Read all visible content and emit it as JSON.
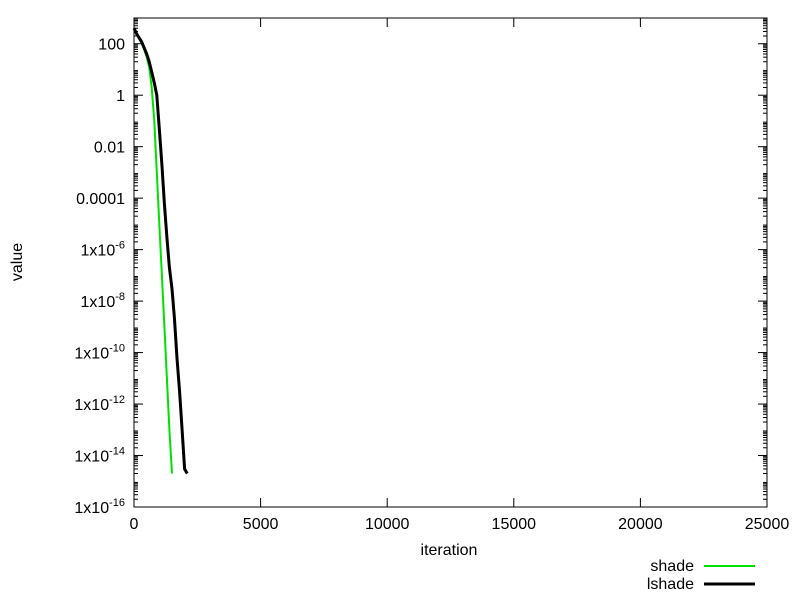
{
  "chart_data": {
    "type": "line",
    "xlabel": "iteration",
    "ylabel": "value",
    "title": "",
    "xscale": "linear",
    "yscale": "log",
    "xlim": [
      0,
      25000
    ],
    "ylim": [
      1e-16,
      1000
    ],
    "x_ticks": [
      0,
      5000,
      10000,
      15000,
      20000,
      25000
    ],
    "x_tick_labels": [
      "0",
      "5000",
      "10000",
      "15000",
      "20000",
      "25000"
    ],
    "y_ticks": [
      {
        "value": 100,
        "label": "100"
      },
      {
        "value": 1,
        "label": "1"
      },
      {
        "value": 0.01,
        "label": "0.01"
      },
      {
        "value": 0.0001,
        "label": "0.0001"
      },
      {
        "value": 1e-06,
        "base": "1x10",
        "exp": "-6"
      },
      {
        "value": 1e-08,
        "base": "1x10",
        "exp": "-8"
      },
      {
        "value": 1e-10,
        "base": "1x10",
        "exp": "-10"
      },
      {
        "value": 1e-12,
        "base": "1x10",
        "exp": "-12"
      },
      {
        "value": 1e-14,
        "base": "1x10",
        "exp": "-14"
      },
      {
        "value": 1e-16,
        "base": "1x10",
        "exp": "-16"
      }
    ],
    "grid": false,
    "legend_position": "bottom-right, outside plot",
    "series": [
      {
        "name": "shade",
        "color": "#00e000",
        "points": [
          [
            0,
            400
          ],
          [
            100,
            250
          ],
          [
            200,
            160
          ],
          [
            300,
            100
          ],
          [
            400,
            60
          ],
          [
            500,
            30
          ],
          [
            600,
            12
          ],
          [
            700,
            2
          ],
          [
            800,
            0.1
          ],
          [
            900,
            0.001
          ],
          [
            1000,
            1e-05
          ],
          [
            1100,
            1e-07
          ],
          [
            1200,
            1e-09
          ],
          [
            1300,
            1e-11
          ],
          [
            1400,
            1e-13
          ],
          [
            1500,
            2e-15
          ]
        ]
      },
      {
        "name": "lshade",
        "color": "#000000",
        "points": [
          [
            0,
            400
          ],
          [
            100,
            250
          ],
          [
            200,
            170
          ],
          [
            300,
            120
          ],
          [
            400,
            70
          ],
          [
            500,
            40
          ],
          [
            600,
            20
          ],
          [
            700,
            8
          ],
          [
            800,
            3
          ],
          [
            900,
            1
          ],
          [
            1000,
            0.05
          ],
          [
            1100,
            0.002
          ],
          [
            1200,
            6e-05
          ],
          [
            1300,
            3e-06
          ],
          [
            1400,
            2e-07
          ],
          [
            1500,
            3e-08
          ],
          [
            1600,
            2e-09
          ],
          [
            1700,
            6e-11
          ],
          [
            1800,
            3e-12
          ],
          [
            1900,
            1e-13
          ],
          [
            2000,
            3e-15
          ],
          [
            2100,
            2e-15
          ]
        ]
      }
    ]
  }
}
